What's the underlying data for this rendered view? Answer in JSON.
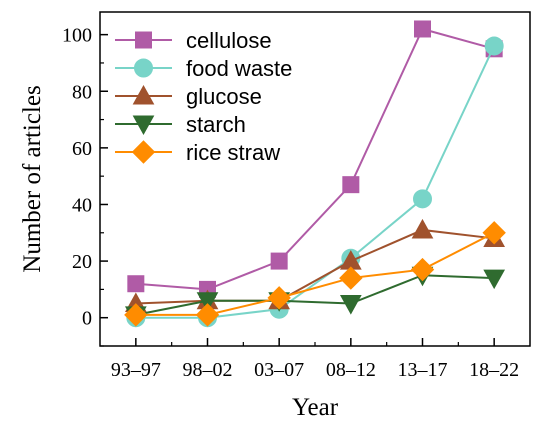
{
  "chart_data": {
    "type": "line",
    "xlabel": "Year",
    "ylabel": "Number of articles",
    "categories": [
      "93–97",
      "98–02",
      "03–07",
      "08–12",
      "13–17",
      "18–22"
    ],
    "ylim": [
      -10,
      108
    ],
    "yticks": [
      0,
      20,
      40,
      60,
      80,
      100
    ],
    "grid": false,
    "legend_position": "top-left",
    "series": [
      {
        "name": "cellulose",
        "values": [
          12,
          10,
          20,
          47,
          102,
          95
        ],
        "color": "#B05BA6",
        "marker": "square"
      },
      {
        "name": "food waste",
        "values": [
          0,
          0,
          3,
          21,
          42,
          96
        ],
        "color": "#78D4C8",
        "marker": "circle"
      },
      {
        "name": "glucose",
        "values": [
          5,
          6,
          6,
          20,
          31,
          28
        ],
        "color": "#A0522D",
        "marker": "triangle-up"
      },
      {
        "name": "starch",
        "values": [
          1,
          6,
          6,
          5,
          15,
          14
        ],
        "color": "#2F6B2F",
        "marker": "triangle-down"
      },
      {
        "name": "rice straw",
        "values": [
          1,
          1,
          7,
          14,
          17,
          30
        ],
        "color": "#FF8C00",
        "marker": "diamond"
      }
    ]
  }
}
